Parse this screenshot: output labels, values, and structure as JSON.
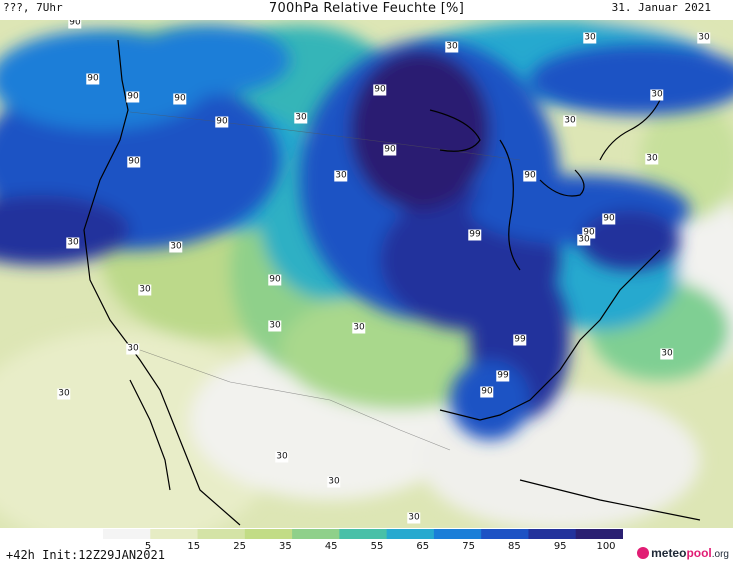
{
  "header": {
    "left": "???, 7Uhr",
    "title": "700hPa Relative Feuchte [%]",
    "date": "31. Januar 2021"
  },
  "footer": {
    "run_info": "+42h  Init:12Z29JAN2021",
    "logo_main": "meteo",
    "logo_accent": "pool",
    "logo_suffix": ".org"
  },
  "colorbar": {
    "ticks": [
      "5",
      "15",
      "25",
      "35",
      "45",
      "55",
      "65",
      "75",
      "85",
      "95",
      "100"
    ],
    "colors": [
      "#f4f4f4",
      "#e6ecc4",
      "#d4e3a6",
      "#c2dc86",
      "#8fd08a",
      "#48c0a8",
      "#27a9cf",
      "#1b7ed8",
      "#1d52c4",
      "#22329c",
      "#2a1f72"
    ]
  },
  "contour_labels": [
    {
      "text": "90"
    },
    {
      "text": "90"
    },
    {
      "text": "90"
    },
    {
      "text": "90"
    },
    {
      "text": "90"
    },
    {
      "text": "90"
    },
    {
      "text": "90"
    },
    {
      "text": "90"
    },
    {
      "text": "90"
    },
    {
      "text": "90"
    },
    {
      "text": "90"
    },
    {
      "text": "99"
    },
    {
      "text": "90"
    },
    {
      "text": "99"
    },
    {
      "text": "99"
    },
    {
      "text": "90"
    },
    {
      "text": "30"
    },
    {
      "text": "30"
    },
    {
      "text": "30"
    },
    {
      "text": "30"
    },
    {
      "text": "30"
    },
    {
      "text": "30"
    },
    {
      "text": "30"
    },
    {
      "text": "30"
    },
    {
      "text": "30"
    },
    {
      "text": "30"
    },
    {
      "text": "30"
    },
    {
      "text": "30"
    },
    {
      "text": "30"
    },
    {
      "text": "30"
    },
    {
      "text": "30"
    },
    {
      "text": "30"
    },
    {
      "text": "30"
    },
    {
      "text": "30"
    },
    {
      "text": "30"
    },
    {
      "text": "30"
    }
  ]
}
